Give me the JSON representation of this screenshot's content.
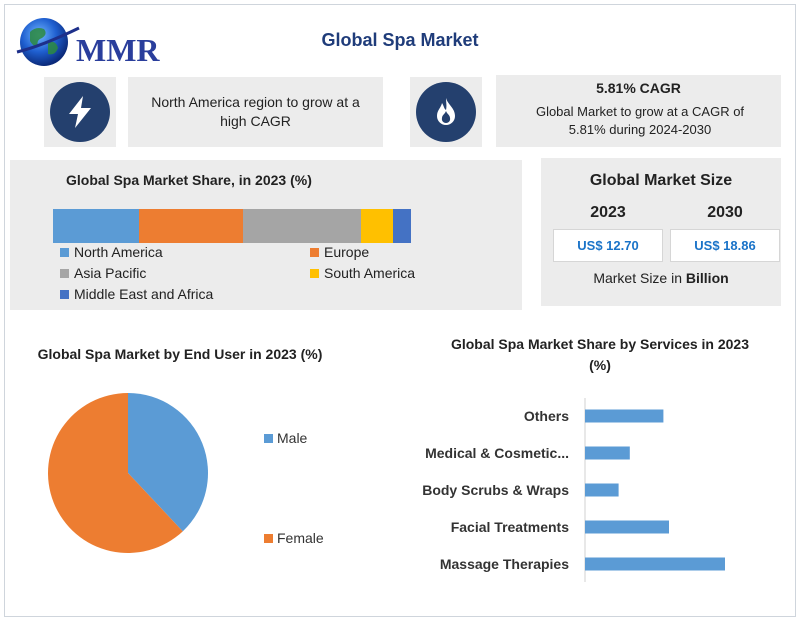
{
  "logo": {
    "text": "MMR"
  },
  "header": {
    "title": "Global Spa Market"
  },
  "highlight_left": {
    "icon": "lightning-icon",
    "text": "North America region to grow at a high CAGR"
  },
  "highlight_right": {
    "icon": "flame-icon",
    "title": "5.81% CAGR",
    "text": "Global Market to grow at a CAGR of 5.81% during 2024-2030"
  },
  "market_size": {
    "title": "Global Market Size",
    "year1": "2023",
    "value1": "US$ 12.70",
    "year2": "2030",
    "value2": "US$ 18.86",
    "unit_prefix": "Market Size in",
    "unit_bold": "Billion"
  },
  "colors": {
    "blue": "#5b9bd5",
    "orange": "#ed7d31",
    "gray": "#a5a5a5",
    "yellow": "#ffc000",
    "darkblue": "#4472c4",
    "panel": "#ececec",
    "navy": "#24406e"
  },
  "chart_data": [
    {
      "type": "bar",
      "orientation": "horizontal-stacked",
      "title": "Global Spa Market Share, in 2023 (%)",
      "categories": [
        "North America",
        "Europe",
        "Asia Pacific",
        "South America",
        "Middle East and Africa"
      ],
      "values": [
        24,
        29,
        33,
        9,
        5
      ],
      "colors": [
        "#5b9bd5",
        "#ed7d31",
        "#a5a5a5",
        "#ffc000",
        "#4472c4"
      ],
      "legend": "bottom"
    },
    {
      "type": "pie",
      "title": "Global Spa Market by End User in 2023 (%)",
      "categories": [
        "Male",
        "Female"
      ],
      "values": [
        38,
        62
      ],
      "colors": [
        "#5b9bd5",
        "#ed7d31"
      ],
      "legend": "right"
    },
    {
      "type": "bar",
      "orientation": "horizontal",
      "title": "Global Spa Market Share by Services in 2023 (%)",
      "categories": [
        "Others",
        "Medical & Cosmetic...",
        "Body Scrubs & Wraps",
        "Facial Treatments",
        "Massage Therapies"
      ],
      "values": [
        14,
        8,
        6,
        15,
        25
      ],
      "color": "#5b9bd5"
    }
  ]
}
